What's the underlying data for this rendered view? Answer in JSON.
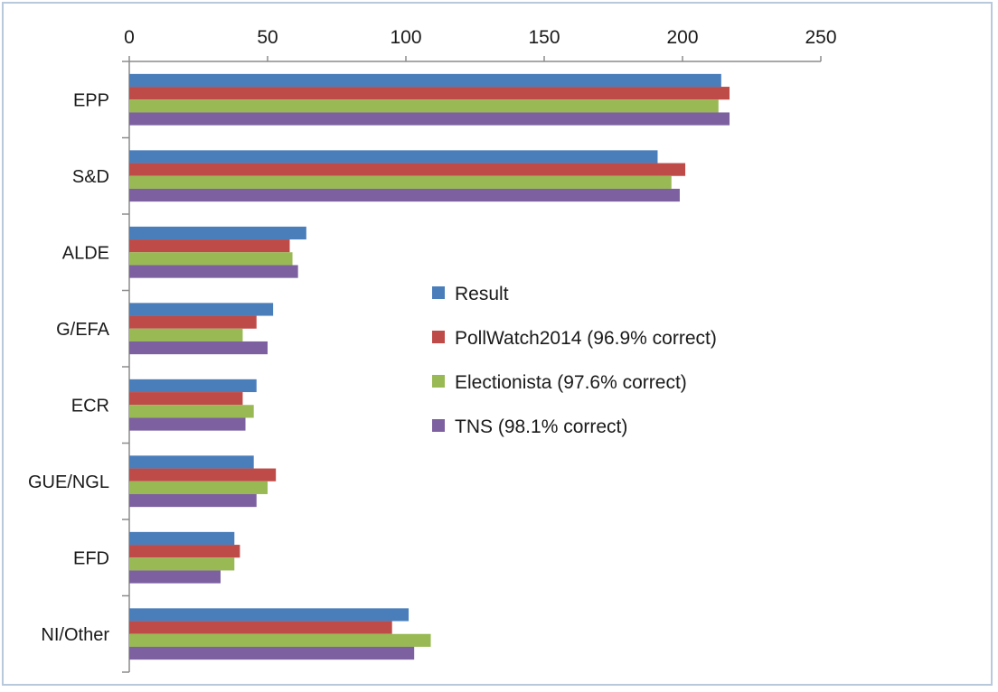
{
  "chart_data": {
    "type": "bar",
    "orientation": "horizontal",
    "title": "",
    "xlabel": "",
    "ylabel": "",
    "xlim": [
      0,
      250
    ],
    "x_ticks": [
      0,
      50,
      100,
      150,
      200,
      250
    ],
    "x_axis_position": "top",
    "grid": false,
    "legend_position": "center-right",
    "categories": [
      "EPP",
      "S&D",
      "ALDE",
      "G/EFA",
      "ECR",
      "GUE/NGL",
      "EFD",
      "NI/Other"
    ],
    "series": [
      {
        "name": "Result",
        "color": "#4a7ebb",
        "values": [
          214,
          191,
          64,
          52,
          46,
          45,
          38,
          101
        ]
      },
      {
        "name": "PollWatch2014 (96.9% correct)",
        "color": "#be4b48",
        "values": [
          217,
          201,
          58,
          46,
          41,
          53,
          40,
          95
        ]
      },
      {
        "name": "Electionista (97.6% correct)",
        "color": "#98b954",
        "values": [
          213,
          196,
          59,
          41,
          45,
          50,
          38,
          109
        ]
      },
      {
        "name": "TNS (98.1% correct)",
        "color": "#7d60a0",
        "values": [
          217,
          199,
          61,
          50,
          42,
          46,
          33,
          103
        ]
      }
    ]
  }
}
